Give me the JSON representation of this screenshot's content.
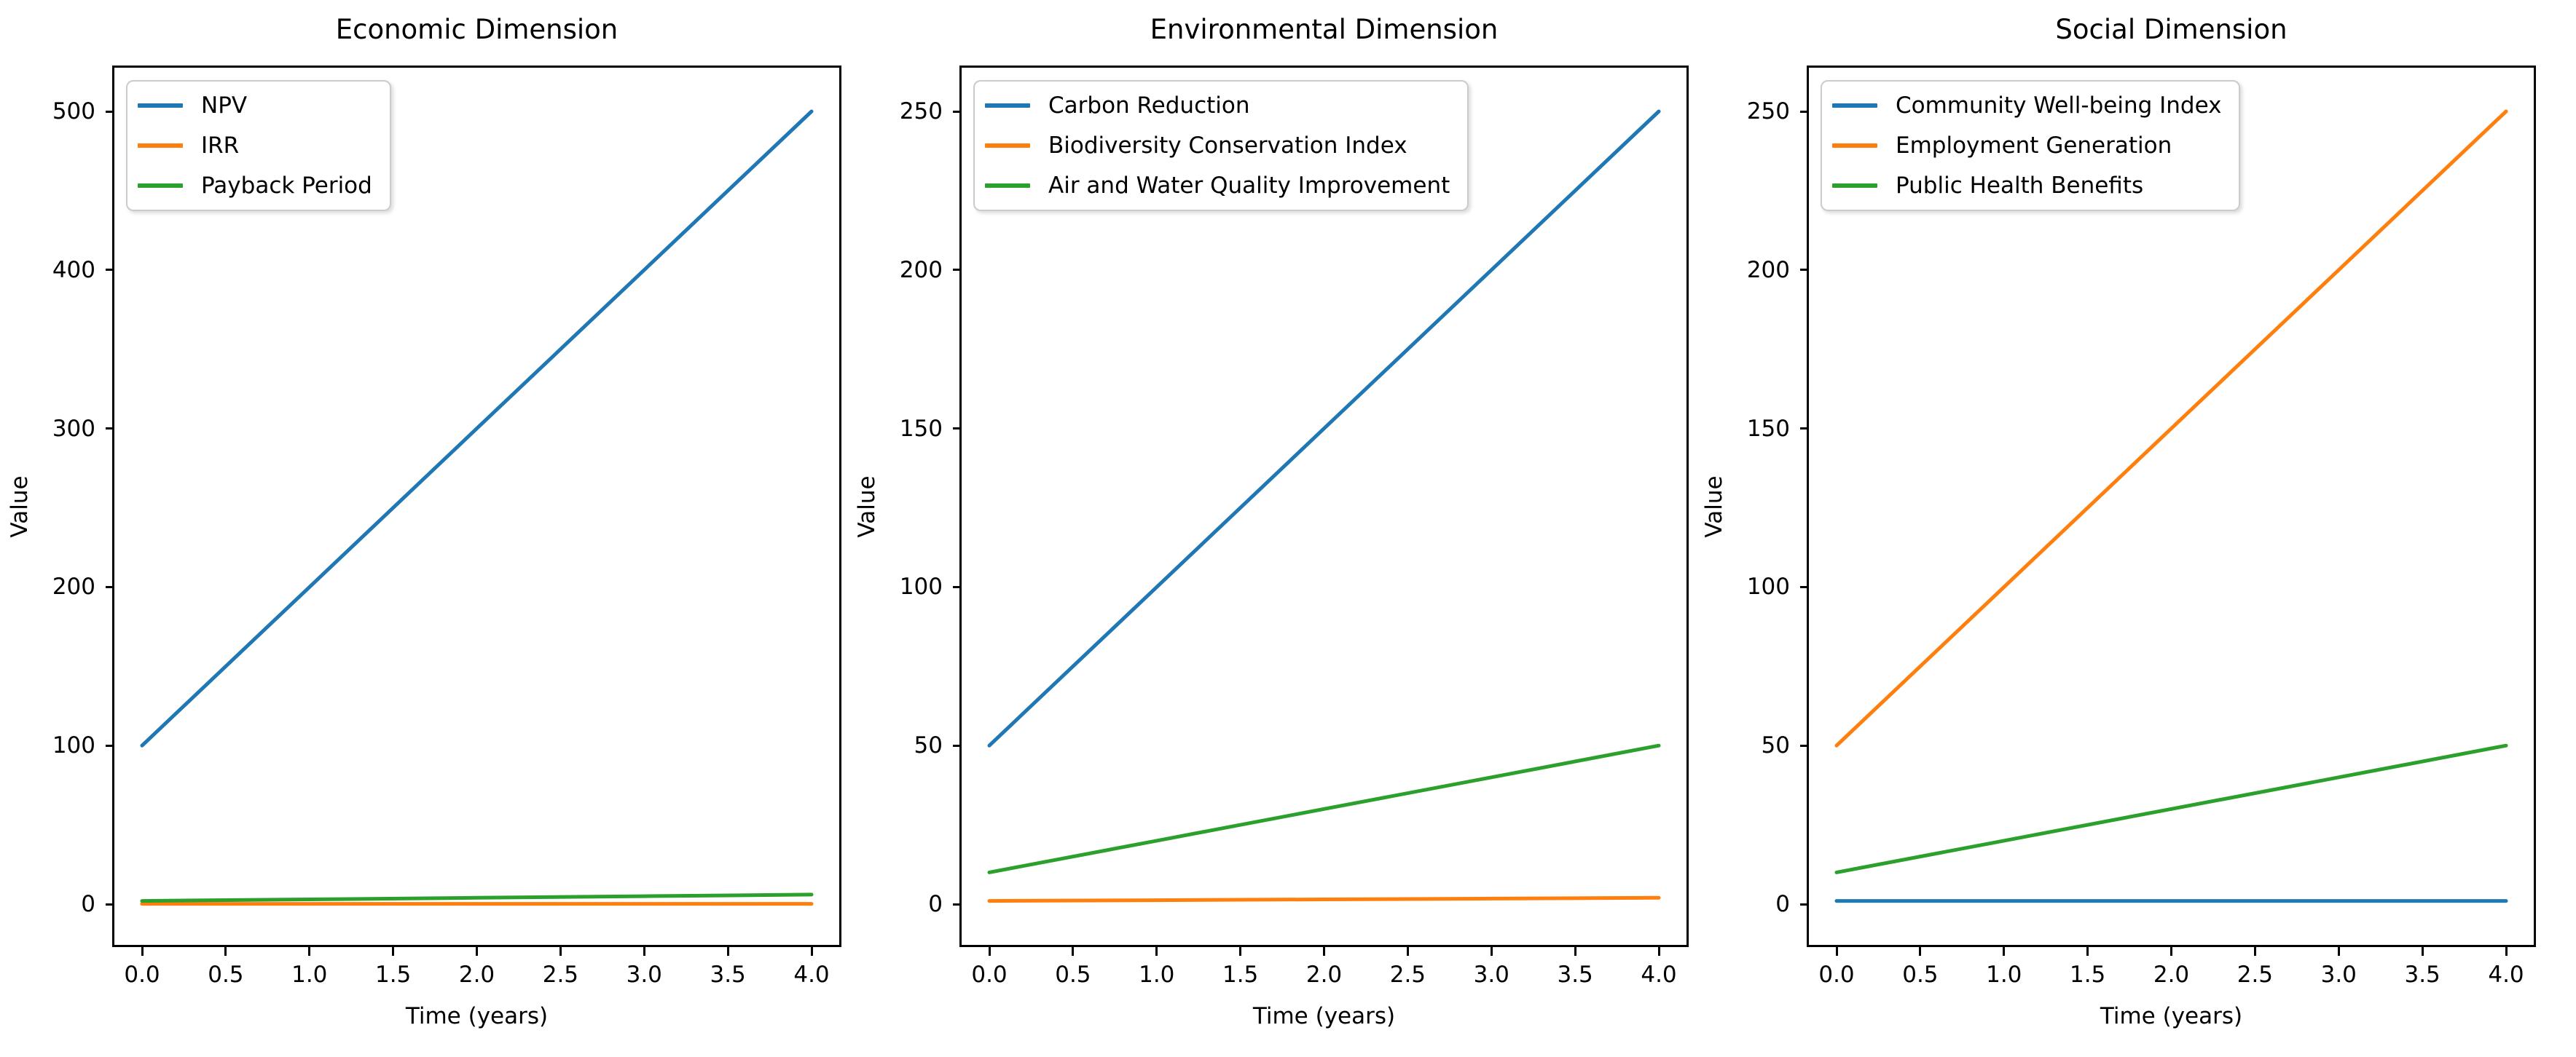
{
  "figure": {
    "background": "#ffffff",
    "text_color": "#000000",
    "spine_color": "#000000"
  },
  "chart_data": [
    {
      "type": "line",
      "title": "Economic Dimension",
      "xlabel": "Time (years)",
      "ylabel": "Value",
      "x": [
        0,
        1,
        2,
        3,
        4
      ],
      "series": [
        {
          "name": "NPV",
          "color": "#1f77b4",
          "values": [
            100,
            200,
            300,
            400,
            500
          ]
        },
        {
          "name": "IRR",
          "color": "#ff7f0e",
          "values": [
            0.2,
            0.2,
            0.2,
            0.2,
            0.2
          ]
        },
        {
          "name": "Payback Period",
          "color": "#2ca02c",
          "values": [
            2,
            3,
            4,
            5,
            6
          ]
        }
      ],
      "xtick_labels": [
        "0.0",
        "0.5",
        "1.0",
        "1.5",
        "2.0",
        "2.5",
        "3.0",
        "3.5",
        "4.0"
      ],
      "yticks": [
        0,
        100,
        200,
        300,
        400,
        500
      ],
      "xlim": [
        -0.2,
        4.2
      ],
      "ylim": [
        -26,
        528
      ],
      "legend_position": "upper left",
      "grid": false
    },
    {
      "type": "line",
      "title": "Environmental Dimension",
      "xlabel": "Time (years)",
      "ylabel": "Value",
      "x": [
        0,
        1,
        2,
        3,
        4
      ],
      "series": [
        {
          "name": "Carbon Reduction",
          "color": "#1f77b4",
          "values": [
            50,
            100,
            150,
            200,
            250
          ]
        },
        {
          "name": "Biodiversity Conservation Index",
          "color": "#ff7f0e",
          "values": [
            1,
            1.25,
            1.5,
            1.75,
            2
          ]
        },
        {
          "name": "Air and Water Quality Improvement",
          "color": "#2ca02c",
          "values": [
            10,
            20,
            30,
            40,
            50
          ]
        }
      ],
      "xtick_labels": [
        "0.0",
        "0.5",
        "1.0",
        "1.5",
        "2.0",
        "2.5",
        "3.0",
        "3.5",
        "4.0"
      ],
      "yticks": [
        0,
        50,
        100,
        150,
        200,
        250
      ],
      "xlim": [
        -0.2,
        4.2
      ],
      "ylim": [
        -13,
        264
      ],
      "legend_position": "upper left",
      "grid": false
    },
    {
      "type": "line",
      "title": "Social Dimension",
      "xlabel": "Time (years)",
      "ylabel": "Value",
      "x": [
        0,
        1,
        2,
        3,
        4
      ],
      "series": [
        {
          "name": "Community Well-being Index",
          "color": "#1f77b4",
          "values": [
            1,
            1,
            1,
            1,
            1
          ]
        },
        {
          "name": "Employment Generation",
          "color": "#ff7f0e",
          "values": [
            50,
            100,
            150,
            200,
            250
          ]
        },
        {
          "name": "Public Health Benefits",
          "color": "#2ca02c",
          "values": [
            10,
            20,
            30,
            40,
            50
          ]
        }
      ],
      "xtick_labels": [
        "0.0",
        "0.5",
        "1.0",
        "1.5",
        "2.0",
        "2.5",
        "3.0",
        "3.5",
        "4.0"
      ],
      "yticks": [
        0,
        50,
        100,
        150,
        200,
        250
      ],
      "xlim": [
        -0.2,
        4.2
      ],
      "ylim": [
        -13,
        264
      ],
      "legend_position": "upper left",
      "grid": false
    }
  ]
}
